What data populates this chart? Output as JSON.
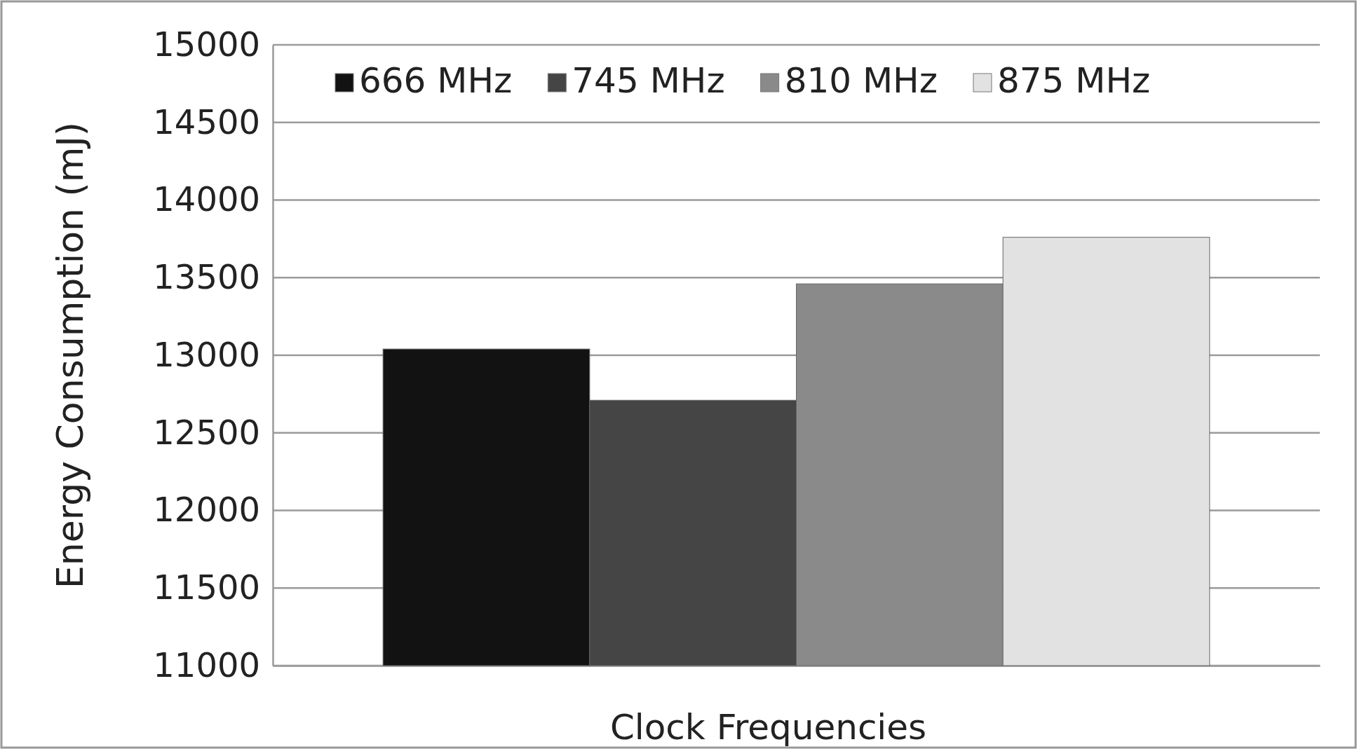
{
  "chart_data": {
    "type": "bar",
    "xlabel": "Clock Frequencies",
    "ylabel": "Energy Consumption (mJ)",
    "categories": [
      null
    ],
    "series": [
      {
        "name": "666 MHz",
        "color": "#121212",
        "values": [
          13040
        ]
      },
      {
        "name": "745 MHz",
        "color": "#454545",
        "values": [
          12710
        ]
      },
      {
        "name": "810 MHz",
        "color": "#8a8a8a",
        "values": [
          13460
        ]
      },
      {
        "name": "875 MHz",
        "color": "#e2e2e2",
        "values": [
          13760
        ]
      }
    ],
    "ylim": [
      11000,
      15000
    ],
    "yticks": [
      11000,
      11500,
      12000,
      12500,
      13000,
      13500,
      14000,
      14500,
      15000
    ],
    "grid": "y",
    "legend": "top"
  }
}
